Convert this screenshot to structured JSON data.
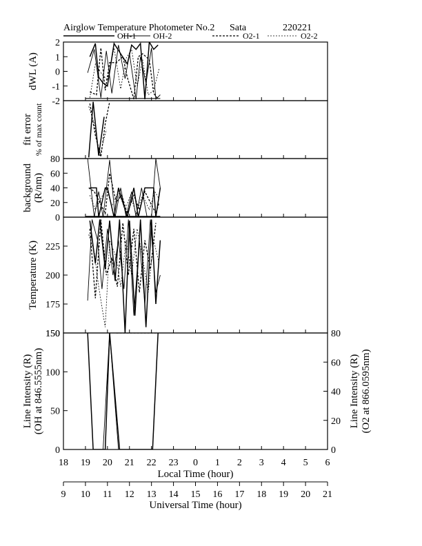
{
  "chart_data": {
    "type": "line",
    "title": "Airglow Temperature Photometer No.2",
    "station": "Sata",
    "date": "220221",
    "legend": [
      {
        "key": "oh1",
        "label": "OH-1",
        "style": "solid-thick"
      },
      {
        "key": "oh2",
        "label": "OH-2",
        "style": "solid-thin"
      },
      {
        "key": "o21",
        "label": "O2-1",
        "style": "dashed-thick"
      },
      {
        "key": "o22",
        "label": "O2-2",
        "style": "dashed-thin"
      }
    ],
    "x_axis_local": {
      "label": "Local Time (hour)",
      "range": [
        18,
        30
      ],
      "ticks": [
        "18",
        "19",
        "20",
        "21",
        "22",
        "23",
        "0",
        "1",
        "2",
        "3",
        "4",
        "5",
        "6"
      ]
    },
    "x_axis_ut": {
      "label": "Universal Time (hour)",
      "range": [
        9,
        21
      ],
      "ticks": [
        "9",
        "10",
        "11",
        "12",
        "13",
        "14",
        "15",
        "16",
        "17",
        "18",
        "19",
        "20",
        "21"
      ]
    },
    "panels": [
      {
        "id": "dwl",
        "ylabel": [
          "dWL (A)"
        ],
        "ylim": [
          -2,
          2
        ],
        "yticks": [
          -2,
          -1,
          0,
          1,
          2
        ],
        "series": {
          "oh1": {
            "x": [
              19.2,
              19.45,
              19.6,
              19.8,
              20.0,
              20.3,
              20.6,
              20.9,
              21.1,
              21.3,
              21.5,
              21.7,
              21.9,
              22.1,
              22.3
            ],
            "y": [
              1.0,
              1.9,
              -0.4,
              -0.8,
              -1.0,
              1.9,
              1.2,
              0.5,
              1.8,
              1.5,
              1.9,
              -1.9,
              2.0,
              1.5,
              1.8
            ]
          },
          "oh2": {
            "x": [
              19.1,
              19.4,
              19.7,
              19.95,
              20.2,
              20.5,
              20.8,
              21.0,
              21.3,
              21.5,
              21.75,
              22.0,
              22.2,
              22.4
            ],
            "y": [
              -0.1,
              1.5,
              -1.8,
              1.4,
              -1.5,
              1.8,
              -0.5,
              1.2,
              -1.9,
              1.0,
              -0.8,
              1.6,
              -1.9,
              -1.6
            ]
          },
          "o21": {
            "x": [
              19.2,
              19.5,
              19.7,
              19.9,
              20.1,
              20.4,
              20.7,
              20.9,
              21.2,
              21.4,
              21.6,
              21.9,
              22.1,
              22.3
            ],
            "y": [
              -1.4,
              -1.6,
              1.6,
              -1.3,
              0.6,
              0.6,
              1.0,
              -0.4,
              -1.9,
              1.0,
              1.2,
              0.8,
              -1.5,
              -1.9
            ]
          },
          "o22": {
            "x": [
              19.2,
              19.45,
              19.75,
              20.0,
              20.3,
              20.6,
              20.85,
              21.1,
              21.35,
              21.6,
              21.85,
              22.1,
              22.35
            ],
            "y": [
              -1.8,
              0.5,
              -0.2,
              -0.6,
              1.6,
              -1.2,
              0.9,
              1.5,
              -1.0,
              0.8,
              -1.6,
              -1.3,
              0.2
            ]
          },
          "baseline": {
            "x": [
              19.0,
              22.4
            ],
            "y": [
              -1.85,
              -1.85
            ]
          }
        }
      },
      {
        "id": "fit",
        "ylabel": [
          "fit error",
          "% of max count"
        ],
        "ylim": [
          0,
          1
        ],
        "yticks": [],
        "series": {
          "oh1": {
            "x": [
              19.15,
              19.35,
              19.6,
              19.85
            ],
            "y": [
              0.02,
              0.98,
              0.05,
              0.72
            ]
          },
          "o21": {
            "x": [
              19.2,
              19.45,
              19.7,
              19.9,
              20.1
            ],
            "y": [
              0.95,
              0.4,
              0.03,
              0.6,
              0.98
            ]
          },
          "o22": {
            "x": [
              19.15,
              19.4,
              19.65,
              19.95
            ],
            "y": [
              0.9,
              0.6,
              0.05,
              0.5
            ]
          }
        }
      },
      {
        "id": "bg",
        "ylabel": [
          "background",
          "(R/nm)"
        ],
        "ylim": [
          0,
          80
        ],
        "yticks": [
          0,
          20,
          40,
          60,
          80
        ],
        "series": {
          "oh1": {
            "x": [
              19.2,
              19.5,
              19.6,
              19.9,
              20.0,
              20.3,
              20.5,
              20.9,
              21.2,
              21.4,
              21.7,
              22.1,
              22.2,
              22.4
            ],
            "y": [
              40,
              40,
              0,
              40,
              40,
              0,
              40,
              0,
              40,
              0,
              40,
              40,
              0,
              40
            ]
          },
          "oh2": {
            "x": [
              19.1,
              19.4,
              19.6,
              19.8,
              20.1,
              20.35,
              20.6,
              20.85,
              21.1,
              21.3,
              21.55,
              21.8,
              22.0,
              22.2,
              22.4
            ],
            "y": [
              80,
              0,
              35,
              0,
              78,
              0,
              40,
              0,
              35,
              0,
              40,
              0,
              0,
              80,
              40
            ]
          },
          "o21": {
            "x": [
              19.15,
              19.4,
              19.65,
              19.9,
              20.1,
              20.4,
              20.65,
              20.9,
              21.2,
              21.45,
              21.7,
              21.95,
              22.2,
              22.35
            ],
            "y": [
              40,
              35,
              20,
              5,
              60,
              20,
              30,
              5,
              30,
              10,
              35,
              20,
              5,
              20
            ]
          },
          "o22": {
            "x": [
              19.2,
              19.45,
              19.7,
              19.95,
              20.2,
              20.5,
              20.8,
              21.05,
              21.3,
              21.6,
              21.9,
              22.15,
              22.35
            ],
            "y": [
              30,
              10,
              25,
              40,
              15,
              35,
              10,
              30,
              5,
              30,
              10,
              35,
              25
            ]
          },
          "baseline": {
            "x": [
              19.0,
              22.4
            ],
            "y": [
              1,
              1
            ]
          }
        }
      },
      {
        "id": "temp",
        "ylabel": [
          "Temperature (K)"
        ],
        "ylim": [
          150,
          250
        ],
        "yticks": [
          150,
          175,
          200,
          225
        ],
        "series": {
          "oh1": {
            "x": [
              19.2,
              19.45,
              19.65,
              19.9,
              20.1,
              20.35,
              20.55,
              20.8,
              21.0,
              21.25,
              21.5,
              21.75,
              22.0,
              22.2,
              22.4
            ],
            "y": [
              247,
              210,
              248,
              205,
              247,
              195,
              248,
              150,
              247,
              165,
              248,
              155,
              248,
              175,
              230
            ]
          },
          "oh2": {
            "x": [
              19.1,
              19.3,
              19.55,
              19.75,
              20.0,
              20.25,
              20.5,
              20.75,
              20.95,
              21.2,
              21.45,
              21.7,
              21.95,
              22.2,
              22.4
            ],
            "y": [
              178,
              248,
              230,
              188,
              240,
              200,
              230,
              188,
              248,
              165,
              230,
              175,
              248,
              185,
              200
            ]
          },
          "o21": {
            "x": [
              19.2,
              19.45,
              19.7,
              19.95,
              20.2,
              20.45,
              20.7,
              20.95,
              21.2,
              21.45,
              21.7,
              21.95,
              22.2
            ],
            "y": [
              240,
              180,
              248,
              200,
              215,
              190,
              245,
              200,
              240,
              185,
              230,
              205,
              245
            ]
          },
          "o22": {
            "x": [
              19.15,
              19.4,
              19.6,
              19.9,
              20.1,
              20.4,
              20.6,
              20.85,
              21.1,
              21.35,
              21.6,
              21.85,
              22.1,
              22.35
            ],
            "y": [
              235,
              220,
              190,
              155,
              230,
              215,
              190,
              230,
              200,
              240,
              215,
              185,
              230,
              210
            ]
          }
        }
      },
      {
        "id": "int",
        "ylabel": [
          "Line Intensity (R)",
          "(OH at 846.5555nm)"
        ],
        "ylabel_right": [
          "Line Intensity (R)",
          "(O2 at 866.0595nm)"
        ],
        "ylim": [
          0,
          150
        ],
        "yticks": [
          0,
          50,
          100,
          150
        ],
        "ylim_right": [
          0,
          80
        ],
        "yticks_right": [
          0,
          20,
          40,
          60,
          80
        ],
        "series": {
          "oh1": {
            "x": [
              19.1,
              19.35,
              19.9,
              20.1,
              20.55,
              20.8,
              21.1,
              21.3,
              21.6,
              21.8,
              22.05,
              22.3
            ],
            "y": [
              150,
              0,
              0,
              150,
              0,
              0,
              0,
              0,
              0,
              0,
              0,
              150
            ]
          },
          "oh2": {
            "x": [
              19.8,
              20.1,
              20.5,
              20.8,
              21.05,
              21.3,
              21.55,
              21.8,
              22.05,
              22.3
            ],
            "y": [
              0,
              150,
              0,
              0,
              0,
              0,
              0,
              0,
              0,
              150
            ]
          },
          "o21": {
            "x": [
              20.4,
              20.6,
              20.85,
              21.1,
              21.35,
              21.6,
              21.85,
              22.1,
              22.3
            ],
            "y": [
              150,
              150,
              150,
              150,
              150,
              150,
              150,
              150,
              150
            ]
          },
          "o22": {
            "x": [
              20.5,
              20.75,
              21.0,
              21.2,
              21.4,
              21.65,
              21.9,
              22.15,
              22.35
            ],
            "y": [
              150,
              150,
              150,
              150,
              150,
              150,
              150,
              150,
              150
            ]
          }
        }
      }
    ]
  }
}
